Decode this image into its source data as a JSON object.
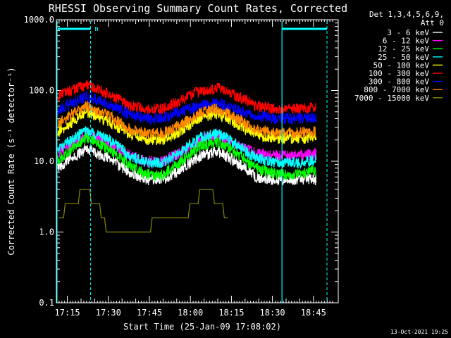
{
  "chart_data": {
    "type": "line",
    "title": "RHESSI Observing Summary Count Rates, Corrected",
    "xlabel": "Start Time (25-Jan-09 17:08:02)",
    "ylabel": "Corrected Count Rate (s⁻¹ detector⁻¹)",
    "y_scale": "log",
    "ylim": [
      0.1,
      1000
    ],
    "y_ticks": [
      "0.1",
      "1.0",
      "10.0",
      "100.0",
      "1000.0"
    ],
    "xlim_minutes": [
      7,
      47
    ],
    "x_ticks": [
      {
        "label": "17:15",
        "minute": 15
      },
      {
        "label": "17:30",
        "minute": 30
      },
      {
        "label": "17:45",
        "minute": 45
      },
      {
        "label": "18:00",
        "minute": 60
      },
      {
        "label": "18:15",
        "minute": 75
      },
      {
        "label": "18:30",
        "minute": 90
      },
      {
        "label": "18:45",
        "minute": 105
      }
    ],
    "legend_header": [
      "Det 1,3,4,5,6,9,",
      "Att 0"
    ],
    "legend_position": "right",
    "night_marker": "N",
    "footer_date": "13-Oct-2021 19:25",
    "series": [
      {
        "name": "3 - 6 keV",
        "color": "#ffffff",
        "t": [
          9,
          15,
          22,
          30,
          38,
          44,
          50,
          56,
          64,
          70,
          78,
          84,
          92,
          100,
          106
        ],
        "values": [
          7,
          10,
          15,
          11,
          7,
          5.5,
          5.5,
          7.5,
          12,
          14,
          9,
          6,
          5.5,
          5.5,
          5.5
        ]
      },
      {
        "name": "6 - 12 keV",
        "color": "#ff00ff",
        "t": [
          9,
          15,
          22,
          30,
          38,
          44,
          50,
          56,
          64,
          70,
          78,
          84,
          92,
          100,
          106
        ],
        "values": [
          11,
          16,
          25,
          18,
          12,
          10,
          10,
          13,
          20,
          23,
          16,
          13,
          12,
          12,
          13
        ]
      },
      {
        "name": "12 - 25 keV",
        "color": "#00ff00",
        "t": [
          9,
          15,
          22,
          30,
          38,
          44,
          50,
          56,
          64,
          70,
          78,
          84,
          92,
          100,
          106
        ],
        "values": [
          9,
          13,
          22,
          15,
          8.5,
          6.5,
          6.5,
          9.5,
          17,
          19,
          12,
          8,
          6.5,
          6.5,
          7.5
        ]
      },
      {
        "name": "25 - 50 keV",
        "color": "#00ffff",
        "t": [
          9,
          15,
          22,
          30,
          38,
          44,
          50,
          56,
          64,
          70,
          78,
          84,
          92,
          100,
          106
        ],
        "values": [
          12,
          18,
          28,
          20,
          12,
          9.5,
          9.5,
          13,
          22,
          25,
          16,
          11,
          9.5,
          9.5,
          10.5
        ]
      },
      {
        "name": "50 - 100 keV",
        "color": "#ffff00",
        "t": [
          9,
          15,
          22,
          30,
          38,
          44,
          50,
          56,
          64,
          70,
          78,
          84,
          92,
          100,
          106
        ],
        "values": [
          22,
          32,
          50,
          36,
          24,
          20,
          20,
          26,
          42,
          47,
          32,
          24,
          21,
          21,
          22
        ]
      },
      {
        "name": "100 - 300 keV",
        "color": "#ff0000",
        "t": [
          9,
          15,
          22,
          30,
          38,
          44,
          50,
          56,
          64,
          70,
          78,
          84,
          92,
          100,
          106
        ],
        "values": [
          75,
          95,
          120,
          90,
          60,
          55,
          55,
          72,
          100,
          108,
          80,
          60,
          55,
          55,
          58
        ]
      },
      {
        "name": "300 - 800 keV",
        "color": "#0000ff",
        "t": [
          9,
          15,
          22,
          30,
          38,
          44,
          50,
          56,
          64,
          70,
          78,
          84,
          92,
          100,
          106
        ],
        "values": [
          48,
          62,
          82,
          65,
          45,
          40,
          40,
          50,
          62,
          66,
          52,
          44,
          40,
          40,
          42
        ]
      },
      {
        "name": "800 - 7000 keV",
        "color": "#ff8800",
        "t": [
          9,
          15,
          22,
          30,
          38,
          44,
          50,
          56,
          64,
          70,
          78,
          84,
          92,
          100,
          106
        ],
        "values": [
          30,
          42,
          60,
          44,
          28,
          25,
          25,
          32,
          50,
          55,
          38,
          28,
          25,
          25,
          26
        ]
      },
      {
        "name": "7000 - 15000 keV",
        "color": "#888800",
        "t": [
          10,
          14,
          18,
          22,
          26,
          30,
          58,
          62,
          66,
          70,
          74
        ],
        "values": [
          1.0,
          2.0,
          3.0,
          3.5,
          2.5,
          1.0,
          1.5,
          3.0,
          3.5,
          3.0,
          1.5
        ]
      }
    ]
  }
}
